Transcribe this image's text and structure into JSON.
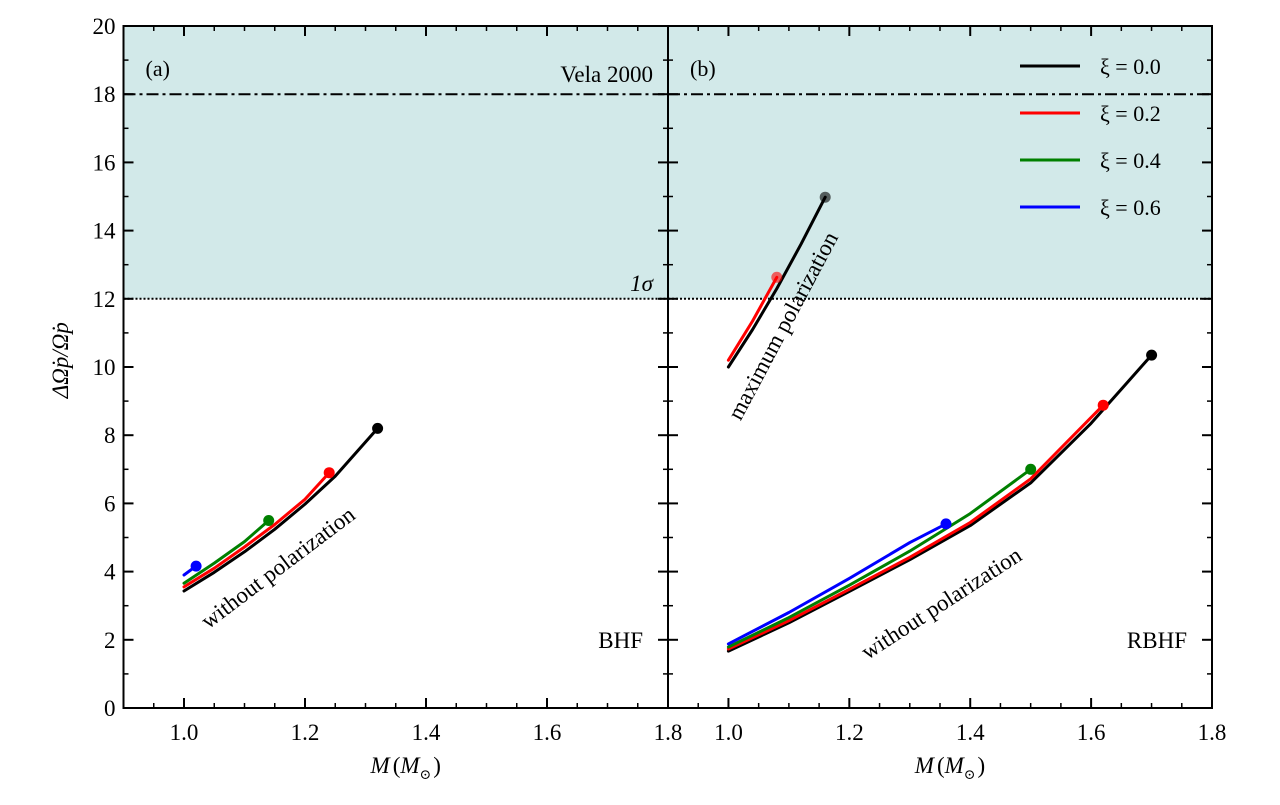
{
  "chart_data": [
    {
      "panel": "a",
      "type": "line",
      "panel_label": "(a)",
      "model_label": "BHF",
      "xlabel": "M (M⊙)",
      "xlabel_main": "M",
      "xlabel_paren_open": "(",
      "xlabel_sub_base": "M",
      "xlabel_sub": "⊙",
      "xlabel_paren_close": ")",
      "ylabel": "ΔΩ̇p/Ω̇p",
      "xlim": [
        0.9,
        1.8
      ],
      "ylim": [
        0,
        20
      ],
      "xticks": [
        1.0,
        1.2,
        1.4,
        1.6,
        1.8
      ],
      "xtick_labels": [
        "1.0",
        "1.2",
        "1.4",
        "1.6",
        "1.8"
      ],
      "yticks": [
        0,
        2,
        4,
        6,
        8,
        10,
        12,
        14,
        16,
        18,
        20
      ],
      "ytick_labels": [
        "0",
        "2",
        "4",
        "6",
        "8",
        "10",
        "12",
        "14",
        "16",
        "18",
        "20"
      ],
      "shaded_band": {
        "y_range": [
          12,
          20
        ],
        "color": "#d2e9e9"
      },
      "reference_lines": [
        {
          "name": "vela-2000-line",
          "y": 18,
          "style": "dashdot",
          "label": "Vela 2000"
        },
        {
          "name": "one-sigma-line",
          "y": 12,
          "style": "dotted",
          "label": "1σ"
        }
      ],
      "annotations": [
        {
          "name": "without-polarization-label",
          "text": "without polarization"
        }
      ],
      "series": [
        {
          "name": "ξ = 0.0",
          "group": "without polarization",
          "color": "#000000",
          "x": [
            1.0,
            1.05,
            1.1,
            1.15,
            1.2,
            1.25,
            1.32
          ],
          "y": [
            3.43,
            3.98,
            4.58,
            5.24,
            5.98,
            6.8,
            8.2
          ]
        },
        {
          "name": "ξ = 0.2",
          "group": "without polarization",
          "color": "#ff0000",
          "x": [
            1.0,
            1.05,
            1.1,
            1.15,
            1.2,
            1.24
          ],
          "y": [
            3.55,
            4.1,
            4.72,
            5.38,
            6.12,
            6.9
          ]
        },
        {
          "name": "ξ = 0.4",
          "group": "without polarization",
          "color": "#008000",
          "x": [
            1.0,
            1.05,
            1.1,
            1.14
          ],
          "y": [
            3.66,
            4.25,
            4.88,
            5.5
          ]
        },
        {
          "name": "ξ = 0.6",
          "group": "without polarization",
          "color": "#0000ff",
          "x": [
            1.0,
            1.02
          ],
          "y": [
            3.9,
            4.16
          ]
        }
      ]
    },
    {
      "panel": "b",
      "type": "line",
      "panel_label": "(b)",
      "model_label": "RBHF",
      "xlabel": "M (M⊙)",
      "xlabel_main": "M",
      "xlabel_paren_open": "(",
      "xlabel_sub_base": "M",
      "xlabel_sub": "⊙",
      "xlabel_paren_close": ")",
      "ylabel": "",
      "xlim": [
        0.9,
        1.8
      ],
      "ylim": [
        0,
        20
      ],
      "xticks": [
        1.0,
        1.2,
        1.4,
        1.6,
        1.8
      ],
      "xtick_labels": [
        "1.0",
        "1.2",
        "1.4",
        "1.6",
        "1.8"
      ],
      "shaded_band": {
        "y_range": [
          12,
          20
        ],
        "color": "#d2e9e9"
      },
      "reference_lines": [
        {
          "name": "vela-2000-line",
          "y": 18,
          "style": "dashdot",
          "label": ""
        },
        {
          "name": "one-sigma-line",
          "y": 12,
          "style": "dotted",
          "label": ""
        }
      ],
      "annotations": [
        {
          "name": "maximum-polarization-label",
          "text": "maximum polarization"
        },
        {
          "name": "without-polarization-label",
          "text": "without polarization"
        }
      ],
      "series": [
        {
          "name": "ξ = 0.0",
          "group": "maximum polarization",
          "color": "#000000",
          "x": [
            1.0,
            1.04,
            1.08,
            1.12,
            1.16
          ],
          "y": [
            10.0,
            11.1,
            12.3,
            13.6,
            14.98
          ]
        },
        {
          "name": "ξ = 0.2",
          "group": "maximum polarization",
          "color": "#ff0000",
          "x": [
            1.0,
            1.04,
            1.08
          ],
          "y": [
            10.2,
            11.35,
            12.63
          ]
        },
        {
          "name": "ξ = 0.0",
          "group": "without polarization",
          "color": "#000000",
          "x": [
            1.0,
            1.1,
            1.2,
            1.3,
            1.4,
            1.5,
            1.6,
            1.7
          ],
          "y": [
            1.67,
            2.5,
            3.42,
            4.35,
            5.35,
            6.6,
            8.35,
            10.35
          ]
        },
        {
          "name": "ξ = 0.2",
          "group": "without polarization",
          "color": "#ff0000",
          "x": [
            1.0,
            1.1,
            1.2,
            1.3,
            1.4,
            1.5,
            1.62
          ],
          "y": [
            1.73,
            2.56,
            3.48,
            4.42,
            5.44,
            6.72,
            8.88
          ]
        },
        {
          "name": "ξ = 0.4",
          "group": "without polarization",
          "color": "#008000",
          "x": [
            1.0,
            1.1,
            1.2,
            1.3,
            1.4,
            1.5
          ],
          "y": [
            1.79,
            2.65,
            3.6,
            4.6,
            5.7,
            7.0
          ]
        },
        {
          "name": "ξ = 0.6",
          "group": "without polarization",
          "color": "#0000ff",
          "x": [
            1.0,
            1.1,
            1.2,
            1.3,
            1.36
          ],
          "y": [
            1.88,
            2.8,
            3.8,
            4.85,
            5.4
          ]
        }
      ],
      "legend": {
        "placement": "top-right",
        "entries": [
          {
            "label": "ξ = 0.0",
            "color": "#000000"
          },
          {
            "label": "ξ = 0.2",
            "color": "#ff0000"
          },
          {
            "label": "ξ = 0.4",
            "color": "#008000"
          },
          {
            "label": "ξ = 0.6",
            "color": "#0000ff"
          }
        ]
      }
    }
  ]
}
